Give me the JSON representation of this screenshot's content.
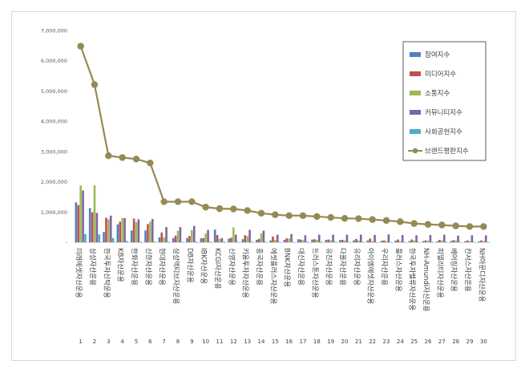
{
  "chart_data": {
    "type": "bar",
    "title": "",
    "xlabel": "",
    "ylabel": "",
    "ylim": [
      0,
      7000000
    ],
    "yticks": [
      "7,000,000",
      "6,000,000",
      "5,000,000",
      "4,000,000",
      "3,000,000",
      "2,000,000",
      "1,000,000",
      "-"
    ],
    "grid": false,
    "legend_position": "right",
    "numbers": [
      "1",
      "2",
      "3",
      "4",
      "5",
      "6",
      "7",
      "8",
      "9",
      "10",
      "11",
      "12",
      "13",
      "14",
      "15",
      "16",
      "17",
      "18",
      "19",
      "20",
      "21",
      "22",
      "23",
      "24",
      "25",
      "26",
      "27",
      "28",
      "29",
      "30"
    ],
    "categories": [
      "미래에셋자산운용",
      "삼성자산운용",
      "한국투자신탁운용",
      "KB자산운용",
      "한화자산운용",
      "신한자산운용",
      "현대자산운용",
      "삼성액티브자산운용",
      "DB자산운용",
      "IBK자산운용",
      "KCGI자산운용",
      "신영자산운용",
      "키움투자자산운용",
      "흥국자산운용",
      "에셋플러스자산운용",
      "BNK자산운용",
      "대신자산운용",
      "트러스톤자산운용",
      "유진자산운용",
      "다올자산운용",
      "유리자산운용",
      "아이엠에셋자산운용",
      "우리자산운용",
      "플러스자산운용",
      "한국투자밸류자산운용",
      "NH-Amundi자산운용",
      "피델리티자산운용",
      "베어링자산운용",
      "칸서스자산운용",
      "NH아문디자산운용"
    ],
    "series": [
      {
        "name": "참여지수",
        "color": "#4f81bd",
        "values": [
          1320000,
          1130000,
          340000,
          590000,
          390000,
          390000,
          160000,
          140000,
          140000,
          130000,
          420000,
          120000,
          100000,
          80000,
          60000,
          80000,
          100000,
          90000,
          80000,
          70000,
          60000,
          60000,
          50000,
          50000,
          40000,
          40000,
          30000,
          40000,
          30000,
          30000
        ]
      },
      {
        "name": "미디어지수",
        "color": "#c0504d",
        "values": [
          1230000,
          990000,
          810000,
          680000,
          780000,
          600000,
          320000,
          220000,
          210000,
          140000,
          240000,
          150000,
          230000,
          110000,
          190000,
          130000,
          90000,
          100000,
          90000,
          80000,
          110000,
          120000,
          60000,
          90000,
          90000,
          60000,
          80000,
          70000,
          60000,
          60000
        ]
      },
      {
        "name": "소통지수",
        "color": "#9bbb59",
        "values": [
          1880000,
          1880000,
          760000,
          800000,
          670000,
          680000,
          160000,
          380000,
          400000,
          290000,
          110000,
          490000,
          200000,
          290000,
          80000,
          120000,
          70000,
          80000,
          70000,
          60000,
          60000,
          40000,
          40000,
          40000,
          60000,
          50000,
          60000,
          60000,
          40000,
          40000
        ]
      },
      {
        "name": "커뮤니티지수",
        "color": "#8064a2",
        "values": [
          1710000,
          970000,
          880000,
          800000,
          760000,
          770000,
          500000,
          500000,
          540000,
          410000,
          140000,
          250000,
          410000,
          380000,
          250000,
          270000,
          230000,
          250000,
          250000,
          250000,
          250000,
          240000,
          260000,
          240000,
          230000,
          240000,
          250000,
          220000,
          230000,
          230000
        ]
      },
      {
        "name": "사회공헌지수",
        "color": "#4bacc6",
        "values": [
          270000,
          260000,
          140000,
          40000,
          20000,
          20000,
          20000,
          10000,
          20000,
          20000,
          20000,
          10000,
          20000,
          20000,
          10000,
          10000,
          20000,
          20000,
          20000,
          10000,
          10000,
          10000,
          10000,
          10000,
          10000,
          10000,
          10000,
          10000,
          10000,
          10000
        ]
      },
      {
        "name": "브랜드평판지수",
        "color": "#948a54",
        "type": "line",
        "values": [
          6480000,
          5210000,
          2860000,
          2800000,
          2750000,
          2620000,
          1340000,
          1340000,
          1340000,
          1160000,
          1110000,
          1100000,
          1050000,
          960000,
          910000,
          880000,
          880000,
          850000,
          820000,
          790000,
          780000,
          750000,
          720000,
          680000,
          620000,
          590000,
          570000,
          540000,
          520000,
          520000
        ]
      }
    ]
  }
}
